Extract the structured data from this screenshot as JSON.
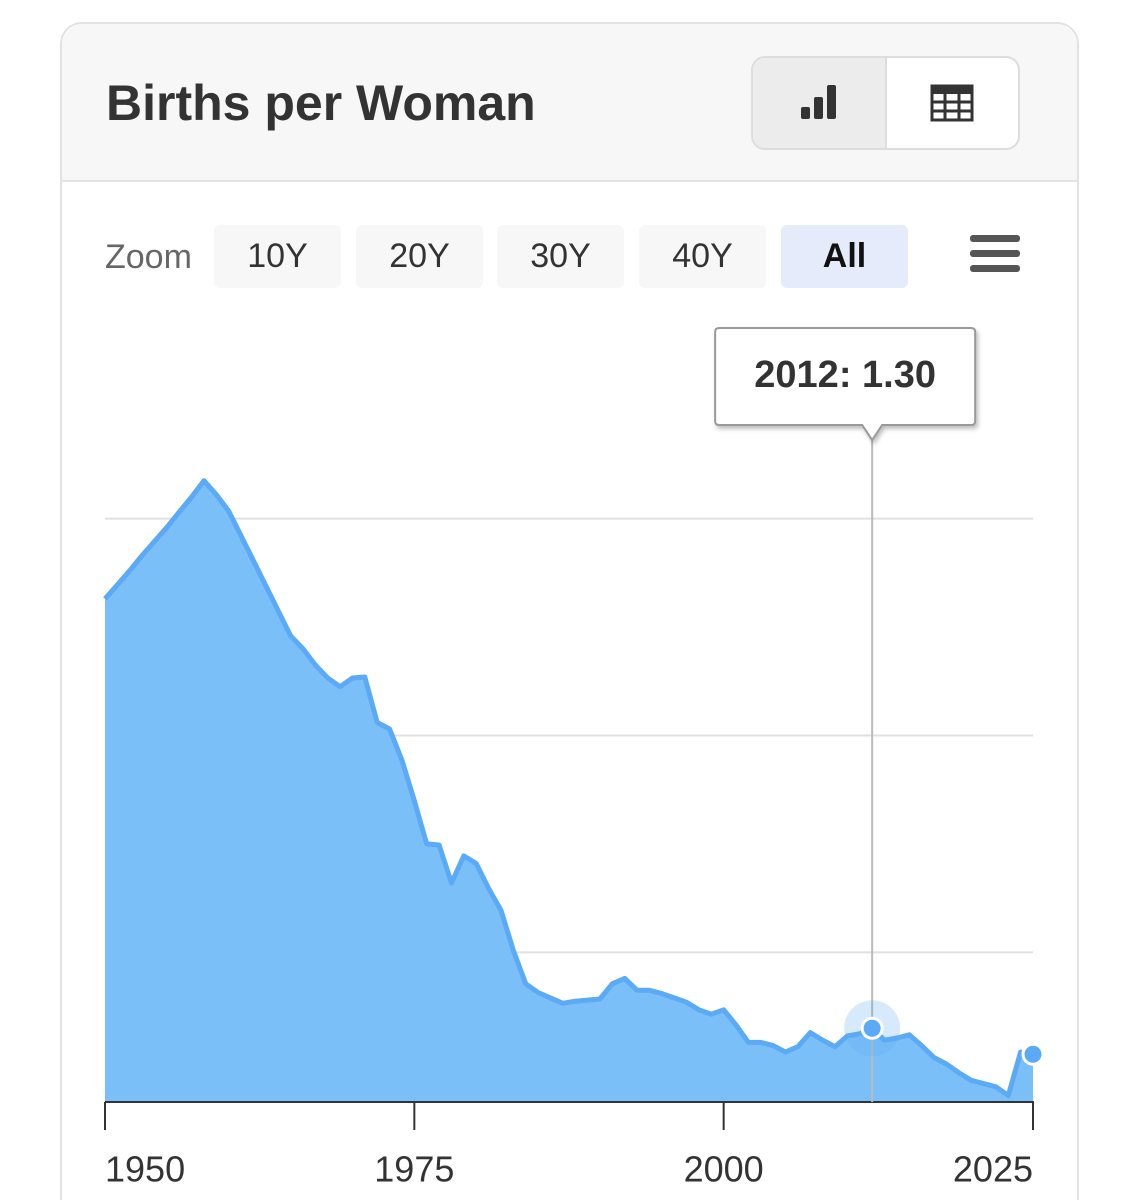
{
  "chart_data": {
    "type": "area",
    "title": "Births per Woman",
    "zoom_label": "Zoom",
    "zoom_buttons": [
      "10Y",
      "20Y",
      "30Y",
      "40Y",
      "All"
    ],
    "x": [
      1950,
      1951,
      1952,
      1953,
      1954,
      1955,
      1956,
      1957,
      1958,
      1959,
      1960,
      1961,
      1962,
      1963,
      1964,
      1965,
      1966,
      1967,
      1968,
      1969,
      1970,
      1971,
      1972,
      1973,
      1974,
      1975,
      1976,
      1977,
      1978,
      1979,
      1980,
      1981,
      1982,
      1983,
      1984,
      1985,
      1986,
      1987,
      1988,
      1989,
      1990,
      1991,
      1992,
      1993,
      1994,
      1995,
      1996,
      1997,
      1998,
      1999,
      2000,
      2001,
      2002,
      2003,
      2004,
      2005,
      2006,
      2007,
      2008,
      2009,
      2010,
      2011,
      2012,
      2013,
      2014,
      2015,
      2016,
      2017,
      2018,
      2019,
      2020,
      2021,
      2022,
      2023,
      2024,
      2025
    ],
    "values": [
      5.26,
      5.39,
      5.52,
      5.66,
      5.79,
      5.92,
      6.06,
      6.2,
      6.35,
      6.22,
      6.07,
      5.84,
      5.61,
      5.38,
      5.15,
      4.92,
      4.8,
      4.65,
      4.53,
      4.45,
      4.53,
      4.54,
      4.12,
      4.06,
      3.77,
      3.4,
      3.0,
      2.99,
      2.64,
      2.89,
      2.82,
      2.59,
      2.39,
      2.02,
      1.71,
      1.63,
      1.58,
      1.53,
      1.55,
      1.56,
      1.57,
      1.71,
      1.76,
      1.65,
      1.65,
      1.62,
      1.58,
      1.54,
      1.47,
      1.43,
      1.47,
      1.33,
      1.17,
      1.17,
      1.14,
      1.08,
      1.13,
      1.26,
      1.19,
      1.13,
      1.23,
      1.25,
      1.3,
      1.19,
      1.21,
      1.24,
      1.14,
      1.03,
      0.97,
      0.89,
      0.82,
      0.79,
      0.76,
      0.68,
      1.08,
      1.06
    ],
    "color": "#5aaaf5",
    "fill": "#7bbff8",
    "xlim": [
      1950,
      2025
    ],
    "xticks": [
      1950,
      1975,
      2000,
      2025
    ],
    "ylim": [
      0.62,
      7.5
    ],
    "yticks": [
      2,
      4,
      6
    ],
    "grid": true,
    "tooltip": {
      "x": 2012,
      "value": 1.3,
      "label": "2012: 1.30"
    }
  }
}
